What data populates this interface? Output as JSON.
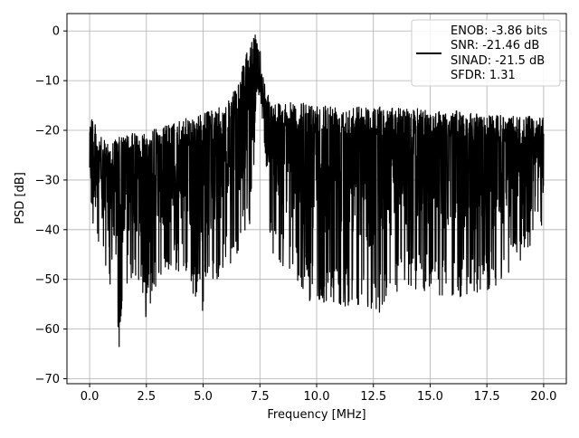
{
  "chart_data": {
    "type": "line",
    "title": "",
    "xlabel": "Frequency [MHz]",
    "ylabel": "PSD [dB]",
    "xlim": [
      -1.0,
      21.0
    ],
    "ylim": [
      -71,
      3.5
    ],
    "x_ticks": [
      0.0,
      2.5,
      5.0,
      7.5,
      10.0,
      12.5,
      15.0,
      17.5,
      20.0
    ],
    "x_tick_labels": [
      "0.0",
      "2.5",
      "5.0",
      "7.5",
      "10.0",
      "12.5",
      "15.0",
      "17.5",
      "20.0"
    ],
    "y_ticks": [
      0,
      -10,
      -20,
      -30,
      -40,
      -50,
      -60,
      -70
    ],
    "y_tick_labels": [
      "0",
      "−10",
      "−20",
      "−30",
      "−40",
      "−50",
      "−60",
      "−70"
    ],
    "grid": true,
    "legend_position": "top-right",
    "legend_lines": [
      "ENOB: -3.86 bits",
      "SNR: -21.46 dB",
      "SINAD: -21.5 dB",
      "SFDR: 1.31"
    ],
    "series": [
      {
        "color": "#000000",
        "x_range": [
          0.0,
          20.0
        ],
        "upper_envelope": [
          [
            0.0,
            -13.5
          ],
          [
            0.3,
            -20
          ],
          [
            0.6,
            -22
          ],
          [
            1.0,
            -22
          ],
          [
            1.5,
            -21
          ],
          [
            2.0,
            -20.5
          ],
          [
            3.0,
            -19.5
          ],
          [
            4.0,
            -18
          ],
          [
            5.0,
            -16.5
          ],
          [
            6.0,
            -15
          ],
          [
            6.5,
            -11
          ],
          [
            6.8,
            -6
          ],
          [
            7.0,
            -3.5
          ],
          [
            7.3,
            -0.5
          ],
          [
            7.5,
            -3
          ],
          [
            7.7,
            -10
          ],
          [
            8.0,
            -14
          ],
          [
            9.0,
            -14.5
          ],
          [
            10.0,
            -14.5
          ],
          [
            12.0,
            -15
          ],
          [
            14.0,
            -15.5
          ],
          [
            16.0,
            -16
          ],
          [
            18.0,
            -17
          ],
          [
            19.0,
            -17
          ],
          [
            20.0,
            -17.5
          ]
        ],
        "noise_floor_typical": -28,
        "lower_envelope": [
          [
            0.0,
            -40
          ],
          [
            0.5,
            -48
          ],
          [
            1.0,
            -52
          ],
          [
            1.3,
            -67.5
          ],
          [
            1.5,
            -52
          ],
          [
            2.0,
            -50
          ],
          [
            2.5,
            -58
          ],
          [
            3.0,
            -50
          ],
          [
            4.0,
            -49
          ],
          [
            5.0,
            -56.5
          ],
          [
            6.0,
            -48
          ],
          [
            7.0,
            -42
          ],
          [
            7.5,
            -18
          ],
          [
            8.0,
            -45
          ],
          [
            10.0,
            -56
          ],
          [
            12.0,
            -55
          ],
          [
            12.3,
            -59
          ],
          [
            14.0,
            -52
          ],
          [
            16.0,
            -54
          ],
          [
            18.0,
            -52
          ],
          [
            20.0,
            -40
          ]
        ]
      }
    ]
  }
}
